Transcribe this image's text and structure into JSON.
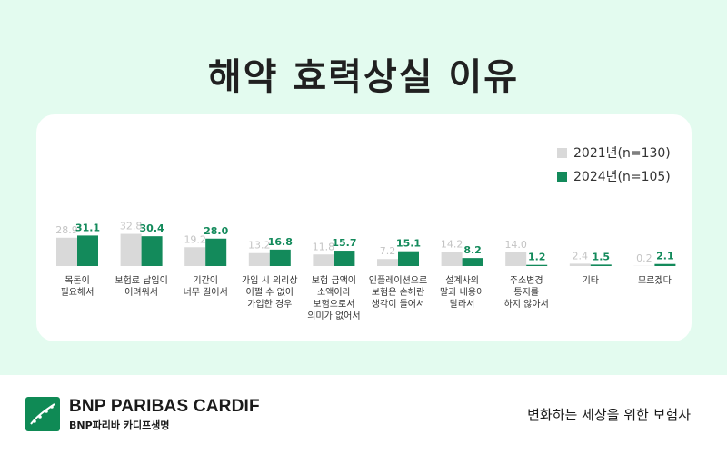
{
  "title": "해약 효력상실 이유",
  "chart_data": {
    "type": "bar",
    "categories": [
      [
        "목돈이",
        "필요해서"
      ],
      [
        "보험료 납입이",
        "어려워서"
      ],
      [
        "기간이",
        "너무 길어서"
      ],
      [
        "가입 시 의리상",
        "어쩔 수 없이",
        "가입한 경우"
      ],
      [
        "보험 금액이",
        "소액이라",
        "보험으로서",
        "의미가 없어서"
      ],
      [
        "인플레이션으로",
        "보험은 손해란",
        "생각이 들어서"
      ],
      [
        "설계사의",
        "말과 내용이",
        "달라서"
      ],
      [
        "주소변경",
        "통지를",
        "하지 않아서"
      ],
      [
        "기타"
      ],
      [
        "모르겠다"
      ]
    ],
    "series": [
      {
        "name": "2021년(n=130)",
        "color": "#d9d9d9",
        "values": [
          28.9,
          32.8,
          19.2,
          13.2,
          11.8,
          7.2,
          14.2,
          14.0,
          2.4,
          0.2
        ]
      },
      {
        "name": "2024년(n=105)",
        "color": "#138a5b",
        "values": [
          31.1,
          30.4,
          28.0,
          16.8,
          15.7,
          15.1,
          8.2,
          1.2,
          1.5,
          2.1
        ]
      }
    ],
    "legend": "top-right",
    "grid": false
  },
  "footer": {
    "brand": "BNP PARIBAS CARDIF",
    "brand_sub": "BNP파리바 카디프생명",
    "tagline": "변화하는 세상을 위한 보험사"
  }
}
